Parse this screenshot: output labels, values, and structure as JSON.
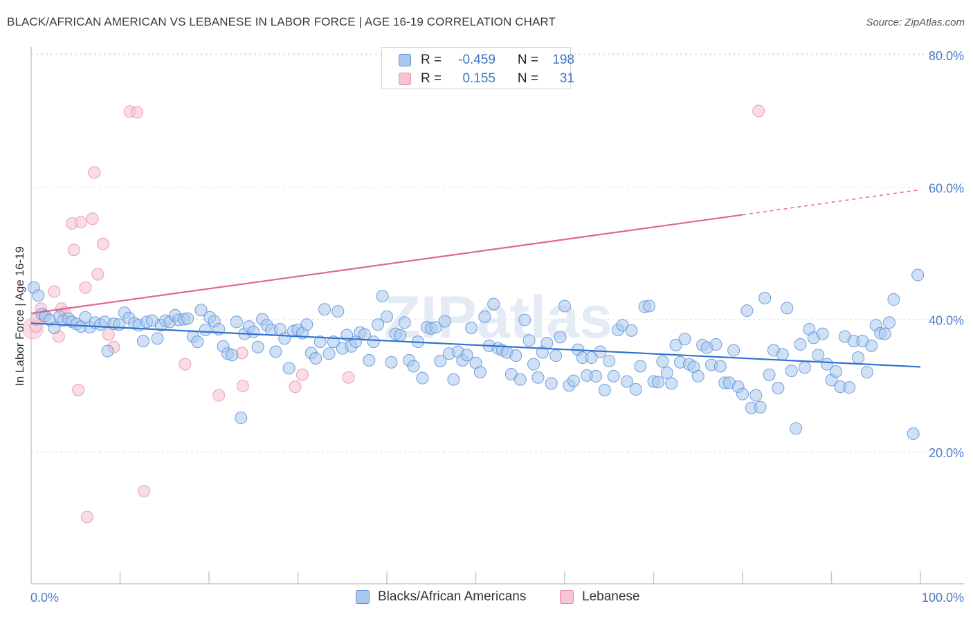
{
  "header": {
    "title": "BLACK/AFRICAN AMERICAN VS LEBANESE IN LABOR FORCE | AGE 16-19 CORRELATION CHART",
    "source": "Source: ZipAtlas.com"
  },
  "legend": {
    "rows": [
      {
        "r_label": "R =",
        "r_value": "-0.459",
        "n_label": "N =",
        "n_value": "198"
      },
      {
        "r_label": "R =",
        "r_value": "0.155",
        "n_label": "N =",
        "n_value": "31"
      }
    ]
  },
  "bottom_legend": {
    "items": [
      {
        "label": "Blacks/African Americans"
      },
      {
        "label": "Lebanese"
      }
    ]
  },
  "colors": {
    "blue_fill": "#aac8ef",
    "blue_stroke": "#5b8fd6",
    "blue_line": "#2f72d0",
    "pink_fill": "#f6c4d3",
    "pink_stroke": "#e48aa8",
    "pink_line": "#e0668f",
    "grid": "#dddddd",
    "tick_label": "#4a7cc9"
  },
  "chart_data": {
    "type": "scatter",
    "title": "BLACK/AFRICAN AMERICAN VS LEBANESE IN LABOR FORCE | AGE 16-19 CORRELATION CHART",
    "xlabel": "",
    "ylabel": "In Labor Force | Age 16-19",
    "xlim": [
      0,
      100
    ],
    "ylim": [
      0,
      84
    ],
    "x_tick_labels": [
      "0.0%",
      "100.0%"
    ],
    "y_ticks": [
      20,
      40,
      60,
      80
    ],
    "y_tick_labels": [
      "20.0%",
      "40.0%",
      "60.0%",
      "80.0%"
    ],
    "grid": true,
    "watermark": "ZIPatlas",
    "series": [
      {
        "name": "Blacks/African Americans",
        "R": -0.459,
        "N": 198,
        "trend": {
          "x0": 0,
          "y0": 39.4,
          "x1": 100,
          "y1": 32.8
        },
        "points": [
          [
            0.3,
            44.8
          ],
          [
            0.8,
            43.6
          ],
          [
            1.2,
            40.8
          ],
          [
            1.6,
            40.5
          ],
          [
            2.1,
            39.9
          ],
          [
            2.6,
            38.7
          ],
          [
            3.2,
            40.4
          ],
          [
            3.6,
            39.8
          ],
          [
            4.2,
            40.1
          ],
          [
            4.6,
            39.6
          ],
          [
            5.1,
            39.3
          ],
          [
            5.6,
            38.9
          ],
          [
            6.1,
            40.3
          ],
          [
            6.6,
            38.8
          ],
          [
            7.2,
            39.5
          ],
          [
            7.8,
            39.2
          ],
          [
            8.3,
            39.6
          ],
          [
            8.6,
            35.2
          ],
          [
            9.3,
            39.3
          ],
          [
            9.9,
            39.2
          ],
          [
            10.5,
            41.0
          ],
          [
            11.0,
            40.2
          ],
          [
            11.6,
            39.4
          ],
          [
            12.1,
            39.1
          ],
          [
            12.6,
            36.7
          ],
          [
            13.0,
            39.6
          ],
          [
            13.6,
            39.8
          ],
          [
            14.2,
            37.1
          ],
          [
            14.6,
            39.1
          ],
          [
            15.1,
            39.8
          ],
          [
            15.6,
            39.6
          ],
          [
            16.2,
            40.6
          ],
          [
            16.6,
            39.9
          ],
          [
            17.2,
            40.0
          ],
          [
            17.6,
            40.1
          ],
          [
            18.2,
            37.4
          ],
          [
            18.7,
            36.6
          ],
          [
            19.1,
            41.4
          ],
          [
            19.6,
            38.4
          ],
          [
            20.1,
            40.3
          ],
          [
            20.6,
            39.7
          ],
          [
            21.1,
            38.5
          ],
          [
            21.6,
            35.9
          ],
          [
            22.1,
            34.8
          ],
          [
            22.6,
            34.6
          ],
          [
            23.1,
            39.6
          ],
          [
            23.6,
            25.1
          ],
          [
            24.0,
            37.8
          ],
          [
            24.5,
            38.9
          ],
          [
            25.0,
            38.1
          ],
          [
            25.5,
            35.8
          ],
          [
            26.0,
            40.0
          ],
          [
            26.5,
            39.1
          ],
          [
            27.0,
            38.4
          ],
          [
            27.5,
            35.1
          ],
          [
            28.0,
            38.5
          ],
          [
            28.5,
            37.1
          ],
          [
            29.0,
            32.6
          ],
          [
            29.5,
            38.2
          ],
          [
            30.0,
            38.4
          ],
          [
            30.5,
            37.9
          ],
          [
            31.0,
            39.2
          ],
          [
            31.5,
            34.9
          ],
          [
            32.0,
            34.1
          ],
          [
            32.5,
            36.6
          ],
          [
            33.0,
            41.5
          ],
          [
            33.5,
            34.8
          ],
          [
            34.0,
            36.6
          ],
          [
            34.5,
            41.2
          ],
          [
            35.0,
            35.6
          ],
          [
            35.5,
            37.6
          ],
          [
            36.0,
            35.9
          ],
          [
            36.5,
            36.6
          ],
          [
            37.0,
            38.0
          ],
          [
            37.5,
            37.7
          ],
          [
            38.0,
            33.8
          ],
          [
            38.5,
            36.6
          ],
          [
            39.0,
            39.2
          ],
          [
            39.5,
            43.5
          ],
          [
            40.0,
            40.4
          ],
          [
            40.5,
            33.5
          ],
          [
            41.0,
            37.8
          ],
          [
            41.5,
            37.6
          ],
          [
            42.0,
            39.5
          ],
          [
            42.5,
            33.8
          ],
          [
            43.0,
            32.9
          ],
          [
            43.5,
            36.6
          ],
          [
            44.0,
            31.1
          ],
          [
            44.5,
            38.8
          ],
          [
            45.0,
            38.6
          ],
          [
            45.5,
            38.8
          ],
          [
            46.0,
            33.7
          ],
          [
            46.5,
            39.7
          ],
          [
            47.0,
            34.8
          ],
          [
            47.5,
            30.9
          ],
          [
            48.0,
            35.1
          ],
          [
            48.5,
            33.8
          ],
          [
            49.0,
            34.6
          ],
          [
            49.5,
            38.7
          ],
          [
            50.0,
            33.4
          ],
          [
            50.5,
            32.0
          ],
          [
            51.0,
            40.4
          ],
          [
            51.5,
            36.0
          ],
          [
            52.0,
            42.3
          ],
          [
            52.5,
            35.6
          ],
          [
            53.0,
            35.3
          ],
          [
            53.5,
            35.0
          ],
          [
            54.0,
            31.7
          ],
          [
            54.5,
            34.5
          ],
          [
            55.0,
            30.9
          ],
          [
            55.5,
            39.9
          ],
          [
            56.0,
            36.8
          ],
          [
            56.5,
            33.2
          ],
          [
            57.0,
            31.2
          ],
          [
            57.5,
            35.0
          ],
          [
            58.0,
            36.4
          ],
          [
            58.5,
            30.3
          ],
          [
            59.0,
            34.5
          ],
          [
            59.5,
            37.3
          ],
          [
            60.0,
            42.0
          ],
          [
            60.5,
            30.0
          ],
          [
            61.0,
            30.7
          ],
          [
            61.5,
            35.4
          ],
          [
            62.0,
            34.2
          ],
          [
            62.5,
            31.5
          ],
          [
            63.0,
            34.2
          ],
          [
            63.5,
            31.4
          ],
          [
            64.0,
            35.1
          ],
          [
            64.5,
            29.3
          ],
          [
            65.0,
            33.7
          ],
          [
            65.5,
            31.4
          ],
          [
            66.0,
            38.4
          ],
          [
            66.5,
            39.1
          ],
          [
            67.0,
            30.6
          ],
          [
            67.5,
            38.3
          ],
          [
            68.0,
            29.4
          ],
          [
            68.5,
            32.9
          ],
          [
            69.0,
            41.9
          ],
          [
            69.5,
            42.0
          ],
          [
            70.0,
            30.6
          ],
          [
            70.5,
            30.5
          ],
          [
            71.0,
            33.6
          ],
          [
            71.5,
            31.9
          ],
          [
            72.0,
            30.3
          ],
          [
            72.5,
            36.1
          ],
          [
            73.0,
            33.5
          ],
          [
            73.5,
            37.0
          ],
          [
            74.0,
            33.2
          ],
          [
            74.5,
            32.8
          ],
          [
            75.0,
            31.4
          ],
          [
            75.5,
            36.1
          ],
          [
            76.0,
            35.7
          ],
          [
            76.5,
            33.1
          ],
          [
            77.0,
            36.2
          ],
          [
            77.5,
            32.9
          ],
          [
            78.0,
            30.4
          ],
          [
            78.5,
            30.4
          ],
          [
            79.0,
            35.3
          ],
          [
            79.5,
            29.8
          ],
          [
            80.0,
            28.7
          ],
          [
            80.5,
            41.3
          ],
          [
            81.0,
            26.6
          ],
          [
            81.5,
            28.5
          ],
          [
            82.0,
            26.7
          ],
          [
            82.5,
            43.2
          ],
          [
            83.0,
            31.6
          ],
          [
            83.5,
            35.3
          ],
          [
            84.0,
            29.6
          ],
          [
            84.5,
            34.7
          ],
          [
            85.0,
            41.7
          ],
          [
            85.5,
            32.2
          ],
          [
            86.0,
            23.5
          ],
          [
            86.5,
            36.2
          ],
          [
            87.0,
            32.7
          ],
          [
            87.5,
            38.5
          ],
          [
            88.0,
            37.2
          ],
          [
            88.5,
            34.6
          ],
          [
            89.0,
            37.8
          ],
          [
            89.5,
            33.2
          ],
          [
            90.0,
            30.8
          ],
          [
            90.5,
            32.1
          ],
          [
            91.0,
            29.8
          ],
          [
            91.5,
            37.4
          ],
          [
            92.0,
            29.7
          ],
          [
            92.5,
            36.7
          ],
          [
            93.0,
            34.2
          ],
          [
            93.5,
            36.7
          ],
          [
            94.0,
            32.0
          ],
          [
            94.5,
            36.0
          ],
          [
            95.0,
            39.1
          ],
          [
            95.5,
            37.9
          ],
          [
            96.0,
            37.8
          ],
          [
            96.5,
            39.5
          ],
          [
            97.0,
            43.0
          ],
          [
            99.2,
            22.7
          ],
          [
            99.7,
            46.7
          ]
        ]
      },
      {
        "name": "Lebanese",
        "R": 0.155,
        "N": 31,
        "trend": {
          "x0": 0,
          "y0": 40.9,
          "x1": 80,
          "y1": 55.8,
          "dashed_to_x": 100,
          "dashed_to_y": 59.6
        },
        "points": [
          [
            0.5,
            38.9
          ],
          [
            0.6,
            40.0
          ],
          [
            1.1,
            41.6
          ],
          [
            1.5,
            40.4
          ],
          [
            2.6,
            44.2
          ],
          [
            3.1,
            37.4
          ],
          [
            3.4,
            41.6
          ],
          [
            3.8,
            41.0
          ],
          [
            4.6,
            54.5
          ],
          [
            4.8,
            50.5
          ],
          [
            5.3,
            29.3
          ],
          [
            5.6,
            54.7
          ],
          [
            6.1,
            44.8
          ],
          [
            6.3,
            10.1
          ],
          [
            6.9,
            55.2
          ],
          [
            7.1,
            62.2
          ],
          [
            7.5,
            46.8
          ],
          [
            8.1,
            51.4
          ],
          [
            8.7,
            37.7
          ],
          [
            9.3,
            35.8
          ],
          [
            11.1,
            71.4
          ],
          [
            11.9,
            71.3
          ],
          [
            12.7,
            14.0
          ],
          [
            17.3,
            33.2
          ],
          [
            21.1,
            28.5
          ],
          [
            23.7,
            34.9
          ],
          [
            23.8,
            29.9
          ],
          [
            29.7,
            29.8
          ],
          [
            30.5,
            31.6
          ],
          [
            35.7,
            31.2
          ],
          [
            81.8,
            71.5
          ]
        ]
      }
    ]
  }
}
